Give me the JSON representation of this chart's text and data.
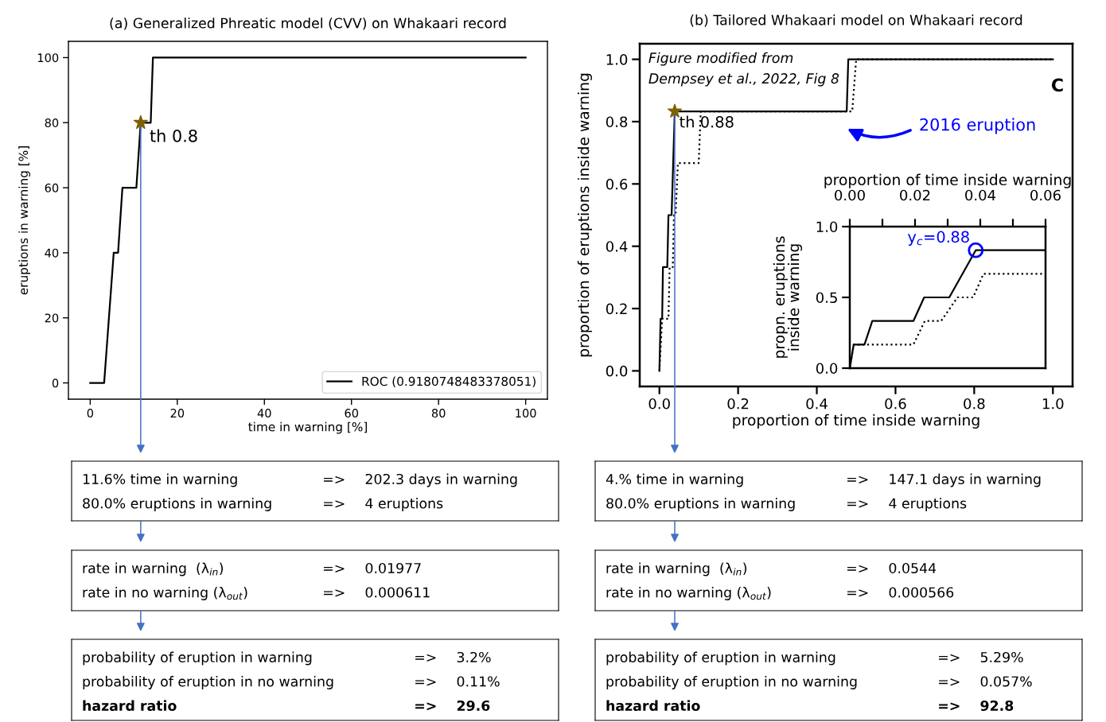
{
  "chart_data": [
    {
      "type": "line",
      "title": "(a) Generalized Phreatic model (CVV) on Whakaari record",
      "xlabel": "time in warning [%]",
      "ylabel": "eruptions in warning [%]",
      "xlim": [
        -5,
        105
      ],
      "ylim": [
        -5,
        105
      ],
      "xticks": [
        0,
        20,
        40,
        60,
        80,
        100
      ],
      "yticks": [
        0,
        20,
        40,
        60,
        80,
        100
      ],
      "legend": "bottom right",
      "series": [
        {
          "name": "ROC (0.9180748483378051)",
          "color": "#000000",
          "x": [
            0,
            3.2,
            5.4,
            6.4,
            7.4,
            10.6,
            11.6,
            13.9,
            14.4,
            100
          ],
          "values": [
            0,
            0,
            40,
            40,
            60,
            60,
            80,
            80,
            100,
            100
          ]
        },
        {
          "type": "scatter",
          "marker": "star",
          "color": "#7f6000",
          "x": [
            11.6
          ],
          "values": [
            80
          ]
        }
      ],
      "annotations": [
        {
          "text": "th 0.8",
          "x": 11.6,
          "y": 80
        }
      ],
      "ref_lines": [
        {
          "axis": "x",
          "value": 11.6,
          "color": "#4472c4"
        }
      ]
    },
    {
      "type": "line",
      "title": "(b) Tailored Whakaari model on Whakaari record",
      "xlabel": "proportion of time inside warning",
      "ylabel": "proportion of eruptions inside warning",
      "xlim": [
        -0.05,
        1.05
      ],
      "ylim": [
        -0.05,
        1.05
      ],
      "xticks": [
        {
          "value": 0,
          "label": "0.0"
        },
        0.2,
        0.4,
        0.6,
        0.8,
        {
          "value": 1,
          "label": "1.0"
        }
      ],
      "yticks": [
        {
          "value": 0,
          "label": "0.0"
        },
        0.2,
        0.4,
        0.6,
        0.8,
        {
          "value": 1,
          "label": "1.0"
        }
      ],
      "series": [
        {
          "color": "#000000",
          "x": [
            0,
            0.003,
            0.007,
            0.009,
            0.02,
            0.023,
            0.031,
            0.039,
            0.476,
            0.48,
            1.0
          ],
          "values": [
            0,
            0.167,
            0.167,
            0.333,
            0.333,
            0.5,
            0.5,
            0.833,
            0.833,
            1.0,
            1.0
          ]
        },
        {
          "color": "#000000",
          "line_style": "dotted",
          "x": [
            0,
            0.007,
            0.023,
            0.026,
            0.034,
            0.037,
            0.041,
            0.047,
            0.1,
            0.105,
            0.49,
            0.5,
            1.0
          ],
          "values": [
            0,
            0.167,
            0.167,
            0.333,
            0.333,
            0.5,
            0.5,
            0.667,
            0.667,
            0.833,
            0.833,
            1.0,
            1.0
          ]
        },
        {
          "type": "scatter",
          "marker": "star",
          "color": "#7f6000",
          "x": [
            0.039
          ],
          "values": [
            0.833
          ]
        }
      ],
      "annotations": [
        "Figure modified from\nDempsey et al., 2022, Fig 8",
        "C",
        {
          "text": "th 0.88",
          "x": 0.039,
          "y": 0.833
        },
        "2016 eruption"
      ],
      "ref_lines": [
        {
          "axis": "x",
          "value": 0.039,
          "color": "#4472c4"
        }
      ]
    },
    {
      "type": "line",
      "xlabel": "proportion of time inside warning",
      "ylabel": "propn. eruptions\ninside warning",
      "xlim": [
        0,
        0.06
      ],
      "ylim": [
        0,
        1
      ],
      "xticks": [
        {
          "value": 0,
          "label": "0.00"
        },
        {
          "value": 0.01,
          "label": null
        },
        {
          "value": 0.02,
          "label": "0.02"
        },
        {
          "value": 0.03,
          "label": null
        },
        {
          "value": 0.04,
          "label": "0.04"
        },
        {
          "value": 0.05,
          "label": null
        },
        {
          "value": 0.06,
          "label": "0.06"
        }
      ],
      "yticks": [
        {
          "value": 0,
          "label": "0.0"
        },
        {
          "value": 0.5,
          "label": "0.5"
        },
        {
          "value": 1,
          "label": "1.0"
        }
      ],
      "series": [
        {
          "color": "#000000",
          "x": [
            0,
            0.0012,
            0.0045,
            0.0069,
            0.0195,
            0.0228,
            0.0305,
            0.0386,
            0.06
          ],
          "values": [
            0,
            0.167,
            0.167,
            0.333,
            0.333,
            0.5,
            0.5,
            0.833,
            0.833
          ]
        },
        {
          "color": "#000000",
          "line_style": "dotted",
          "x": [
            0,
            0.0012,
            0.0195,
            0.023,
            0.028,
            0.033,
            0.0378,
            0.041,
            0.06
          ],
          "values": [
            0,
            0.167,
            0.167,
            0.333,
            0.333,
            0.5,
            0.5,
            0.667,
            0.667
          ]
        },
        {
          "type": "scatter",
          "marker": "circle",
          "color": "#0000ff",
          "x": [
            0.0386
          ],
          "values": [
            0.833
          ]
        }
      ],
      "annotations": [
        {
          "text": "y$_{c}$=0.88",
          "x": 0.0386,
          "y": 0.833
        }
      ]
    },
    {
      "type": "other",
      "annotations": [
        "11.6% time in warning",
        "=>",
        "202.3 days in warning",
        "80.0% eruptions in warning",
        "=>",
        "4 eruptions"
      ]
    },
    {
      "type": "other",
      "annotations": [
        "4.% time in warning",
        "=>",
        "147.1 days in warning",
        "80.0% eruptions in warning",
        "=>",
        "4 eruptions"
      ]
    },
    {
      "type": "other",
      "annotations": [
        "rate in warning  (λ$_{in}$)",
        "=>",
        "0.01977",
        "rate in no warning (λ$_{out}$)",
        "=>",
        "0.000611"
      ]
    },
    {
      "type": "other",
      "annotations": [
        "rate in warning  (λ$_{in}$)",
        "=>",
        "0.0544",
        "rate in no warning (λ$_{out}$)",
        "=>",
        "0.000566"
      ]
    },
    {
      "type": "other",
      "annotations": [
        "probability of eruption in warning",
        "=>",
        "3.2%",
        "probability of eruption in no warning",
        "=>",
        "0.11%",
        "hazard ratio",
        "=>",
        "29.6"
      ]
    },
    {
      "type": "other",
      "annotations": [
        "probability of eruption in warning",
        "=>",
        "5.29%",
        "probability of eruption in no warning",
        "=>",
        "0.057%",
        "hazard ratio",
        "=>",
        "92.8"
      ]
    }
  ]
}
